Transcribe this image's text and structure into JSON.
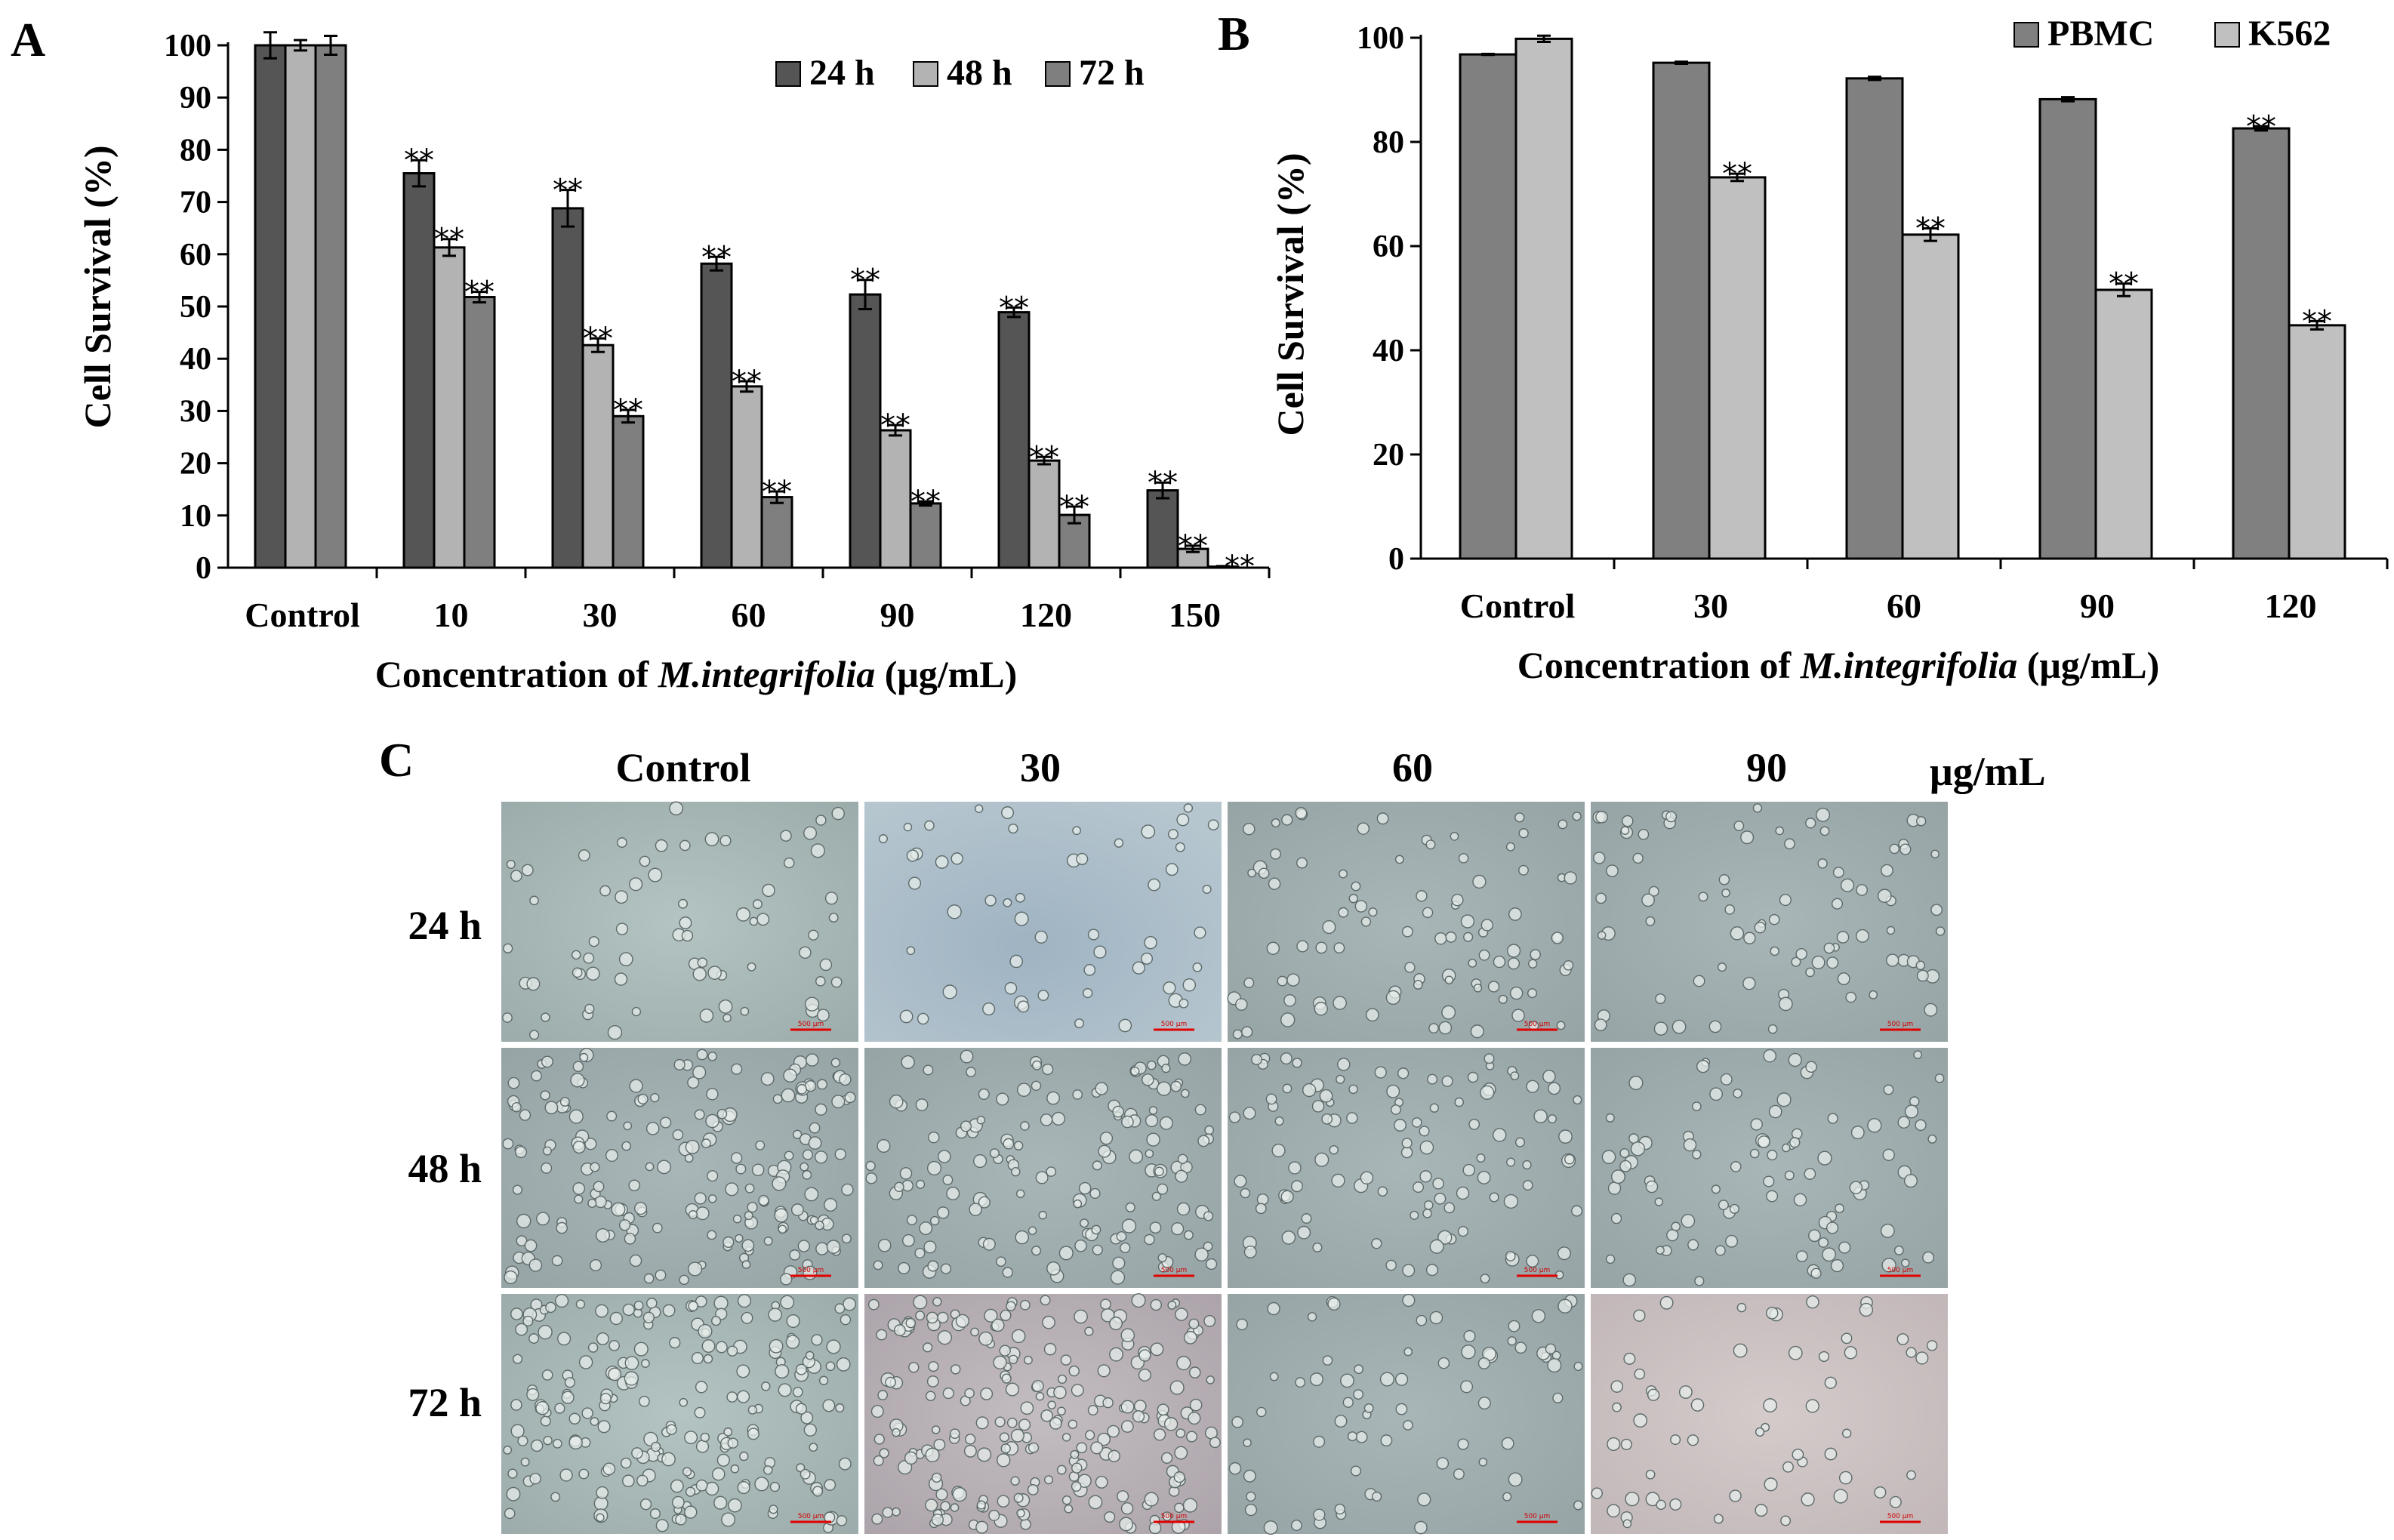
{
  "figure": {
    "panel_labels": [
      "A",
      "B",
      "C"
    ]
  },
  "chart_data": [
    {
      "type": "bar",
      "panel": "A",
      "categories": [
        "Control",
        "10",
        "30",
        "60",
        "90",
        "120",
        "150"
      ],
      "series": [
        {
          "name": "24 h",
          "color": "#555555",
          "values": [
            100,
            75.5,
            68.8,
            58.2,
            52.3,
            48.9,
            14.8
          ],
          "errors": [
            2.5,
            2.5,
            3.5,
            1.3,
            2.8,
            0.9,
            1.5
          ],
          "significant": [
            false,
            true,
            true,
            true,
            true,
            true,
            true
          ]
        },
        {
          "name": "48 h",
          "color": "#b3b3b3",
          "values": [
            100,
            61.3,
            42.6,
            34.7,
            26.3,
            20.5,
            3.6
          ],
          "errors": [
            1.0,
            1.6,
            1.3,
            1.0,
            1.0,
            0.7,
            0.6
          ],
          "significant": [
            false,
            true,
            true,
            true,
            true,
            true,
            true
          ]
        },
        {
          "name": "72 h",
          "color": "#7f7f7f",
          "values": [
            100,
            51.8,
            29.0,
            13.5,
            12.3,
            10.1,
            0.2
          ],
          "errors": [
            1.8,
            1.0,
            1.2,
            1.1,
            0.4,
            1.6,
            0.1
          ],
          "significant": [
            false,
            true,
            true,
            true,
            true,
            true,
            true
          ]
        }
      ],
      "significance_mark": "**",
      "ylabel": "Cell Survival (%)",
      "xlabel": {
        "prefix": "Concentration of ",
        "species": "M.integrifolia",
        "suffix": " (μg/mL)"
      },
      "ylim": [
        0,
        100
      ],
      "yticks": [
        "0",
        "10",
        "20",
        "30",
        "40",
        "50",
        "60",
        "70",
        "80",
        "90",
        "100"
      ],
      "grid": false,
      "legend_position": "top-right"
    },
    {
      "type": "bar",
      "panel": "B",
      "categories": [
        "Control",
        "30",
        "60",
        "90",
        "120"
      ],
      "series": [
        {
          "name": "PBMC",
          "color": "#808080",
          "values": [
            96.8,
            95.2,
            92.2,
            88.2,
            82.6
          ],
          "errors": [
            0.1,
            0.2,
            0.3,
            0.4,
            0.4
          ],
          "significant": [
            false,
            false,
            false,
            false,
            true
          ]
        },
        {
          "name": "K562",
          "color": "#c0c0c0",
          "values": [
            99.8,
            73.2,
            62.2,
            51.6,
            44.8
          ],
          "errors": [
            0.6,
            0.7,
            1.2,
            1.2,
            0.8
          ],
          "significant": [
            false,
            true,
            true,
            true,
            true
          ]
        }
      ],
      "significance_mark": "**",
      "ylabel": "Cell Survival (%)",
      "xlabel": {
        "prefix": "Concentration of ",
        "species": "M.integrifolia",
        "suffix": " (μg/mL)"
      },
      "ylim": [
        0,
        100
      ],
      "yticks": [
        "0",
        "20",
        "40",
        "60",
        "80",
        "100"
      ],
      "grid": false,
      "legend_position": "top-right"
    }
  ],
  "micrographs": {
    "panel": "C",
    "column_labels": [
      "Control",
      "30",
      "60",
      "90"
    ],
    "unit_label": "μg/mL",
    "row_labels": [
      "24 h",
      "48 h",
      "72 h"
    ],
    "scale_bar_label": "500 μm"
  }
}
